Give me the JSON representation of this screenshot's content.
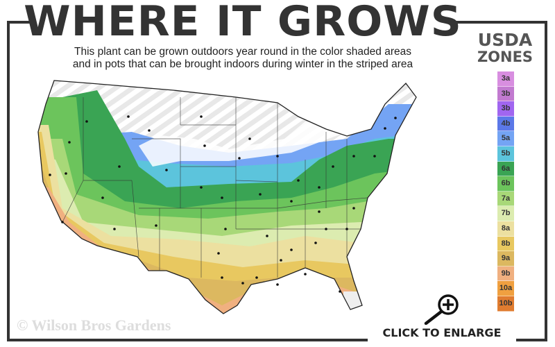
{
  "title": "WHERE IT GROWS",
  "subtitle_line1": "This plant can be grown outdoors year round in the color shaded areas",
  "subtitle_line2": "and in pots that can be brought indoors during winter in the striped area",
  "legend": {
    "title_line1": "USDA",
    "title_line2": "ZONES",
    "zones": [
      {
        "label": "3a",
        "color": "#d88ee0"
      },
      {
        "label": "3b",
        "color": "#c27ad0"
      },
      {
        "label": "3b",
        "color": "#a166f0"
      },
      {
        "label": "4b",
        "color": "#5b78e8"
      },
      {
        "label": "5a",
        "color": "#74a4f4"
      },
      {
        "label": "5b",
        "color": "#5cc4dc"
      },
      {
        "label": "6a",
        "color": "#3aa454"
      },
      {
        "label": "6b",
        "color": "#6cc45c"
      },
      {
        "label": "7a",
        "color": "#a8d878"
      },
      {
        "label": "7b",
        "color": "#dcecb0"
      },
      {
        "label": "8a",
        "color": "#ece0a0"
      },
      {
        "label": "8b",
        "color": "#e8c860"
      },
      {
        "label": "9a",
        "color": "#dcb860"
      },
      {
        "label": "9b",
        "color": "#f0b080"
      },
      {
        "label": "10a",
        "color": "#f0a040"
      },
      {
        "label": "10b",
        "color": "#e07c30"
      }
    ]
  },
  "watermark": "© Wilson Bros Gardens",
  "enlarge_label": "CLICK TO ENLARGE",
  "icons": {
    "zoom": "magnifier-plus-icon"
  }
}
